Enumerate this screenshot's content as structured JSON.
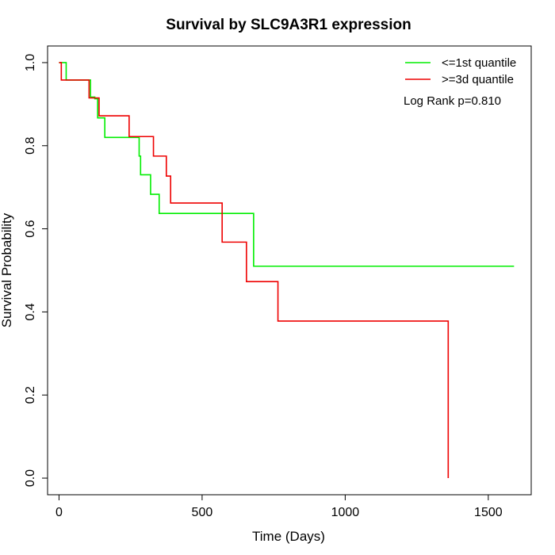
{
  "chart_data": {
    "type": "line",
    "title": "Survival by SLC9A3R1 expression",
    "xlabel": "Time (Days)",
    "ylabel": "Survival Probability",
    "xlim": [
      -40,
      1650
    ],
    "ylim": [
      -0.04,
      1.04
    ],
    "xticks": [
      0,
      500,
      1000,
      1500
    ],
    "yticks": [
      0.0,
      0.2,
      0.4,
      0.6,
      0.8,
      1.0
    ],
    "xtick_labels": [
      "0",
      "500",
      "1000",
      "1500"
    ],
    "ytick_labels": [
      "0.0",
      "0.2",
      "0.4",
      "0.6",
      "0.8",
      "1.0"
    ],
    "grid": false,
    "legend_position": "top-right",
    "annotation": "Log Rank p=0.810",
    "series": [
      {
        "name": "<=1st quantile",
        "color": "#00ee00",
        "step": true,
        "x": [
          0,
          25,
          110,
          125,
          135,
          160,
          280,
          283,
          285,
          320,
          350,
          680,
          1590
        ],
        "y": [
          1.0,
          0.958,
          0.917,
          0.913,
          0.867,
          0.82,
          0.775,
          0.775,
          0.73,
          0.683,
          0.637,
          0.51,
          0.51
        ]
      },
      {
        "name": ">=3d quantile",
        "color": "#ee0000",
        "step": true,
        "x": [
          0,
          8,
          105,
          140,
          245,
          330,
          375,
          390,
          570,
          655,
          765,
          1360,
          1360
        ],
        "y": [
          1.0,
          0.958,
          0.915,
          0.872,
          0.822,
          0.775,
          0.727,
          0.662,
          0.568,
          0.473,
          0.378,
          0.378,
          0.0
        ]
      }
    ]
  }
}
